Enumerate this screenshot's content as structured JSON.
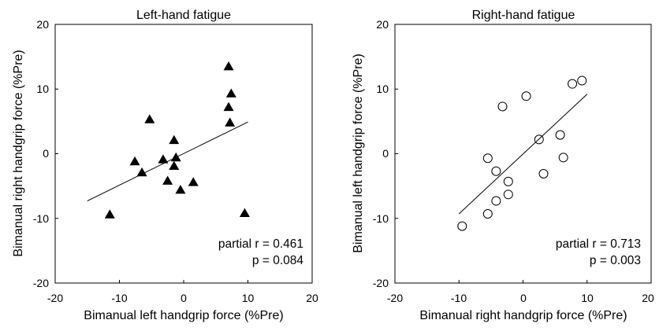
{
  "chart_data": [
    {
      "type": "scatter",
      "title": "Left-hand fatigue",
      "xlabel": "Bimanual left handgrip force (%Pre)",
      "ylabel": "Bimanual right handgrip force (%Pre)",
      "xlim": [
        -20,
        20
      ],
      "ylim": [
        -20,
        20
      ],
      "xticks": [
        "-20",
        "-10",
        "0",
        "10",
        "20"
      ],
      "yticks": [
        "20",
        "10",
        "0",
        "-10",
        "-20"
      ],
      "marker": "filled-triangle",
      "grid": false,
      "series": [
        {
          "points": [
            {
              "x": -11.5,
              "y": -9.4
            },
            {
              "x": -7.6,
              "y": -1.2
            },
            {
              "x": -6.5,
              "y": -2.9
            },
            {
              "x": -5.3,
              "y": 5.3
            },
            {
              "x": -3.2,
              "y": -0.9
            },
            {
              "x": -2.5,
              "y": -4.2
            },
            {
              "x": -1.5,
              "y": 2.1
            },
            {
              "x": -1.5,
              "y": -1.9
            },
            {
              "x": -1.2,
              "y": -0.6
            },
            {
              "x": -0.5,
              "y": -5.6
            },
            {
              "x": 1.5,
              "y": -4.4
            },
            {
              "x": 7.0,
              "y": 13.5
            },
            {
              "x": 7.0,
              "y": 7.2
            },
            {
              "x": 7.2,
              "y": 4.8
            },
            {
              "x": 7.4,
              "y": 9.3
            },
            {
              "x": 9.5,
              "y": -9.2
            }
          ]
        }
      ],
      "fit_line": {
        "x": [
          -15,
          10
        ],
        "y": [
          -7.3,
          4.9
        ]
      },
      "annotation": [
        "partial r = 0.461",
        "p = 0.084"
      ]
    },
    {
      "type": "scatter",
      "title": "Right-hand fatigue",
      "xlabel": "Bimanual right handgrip force (%Pre)",
      "ylabel": "Bimanual left handgrip force (%Pre)",
      "xlim": [
        -20,
        20
      ],
      "ylim": [
        -20,
        20
      ],
      "xticks": [
        "-20",
        "-10",
        "0",
        "10",
        "20"
      ],
      "yticks": [
        "20",
        "10",
        "0",
        "-10",
        "-20"
      ],
      "marker": "open-circle",
      "grid": false,
      "series": [
        {
          "points": [
            {
              "x": -9.5,
              "y": -11.2
            },
            {
              "x": -5.5,
              "y": -0.7
            },
            {
              "x": -5.5,
              "y": -9.3
            },
            {
              "x": -4.2,
              "y": -2.7
            },
            {
              "x": -4.2,
              "y": -7.3
            },
            {
              "x": -3.2,
              "y": 7.3
            },
            {
              "x": -2.3,
              "y": -4.3
            },
            {
              "x": -2.3,
              "y": -6.3
            },
            {
              "x": 0.5,
              "y": 8.9
            },
            {
              "x": 2.5,
              "y": 2.2
            },
            {
              "x": 3.2,
              "y": -3.1
            },
            {
              "x": 5.8,
              "y": 2.9
            },
            {
              "x": 6.3,
              "y": -0.6
            },
            {
              "x": 7.7,
              "y": 10.8
            },
            {
              "x": 9.2,
              "y": 11.3
            }
          ]
        }
      ],
      "fit_line": {
        "x": [
          -10,
          10
        ],
        "y": [
          -9.3,
          9.2
        ]
      },
      "annotation": [
        "partial r = 0.713",
        "p = 0.003"
      ]
    }
  ]
}
